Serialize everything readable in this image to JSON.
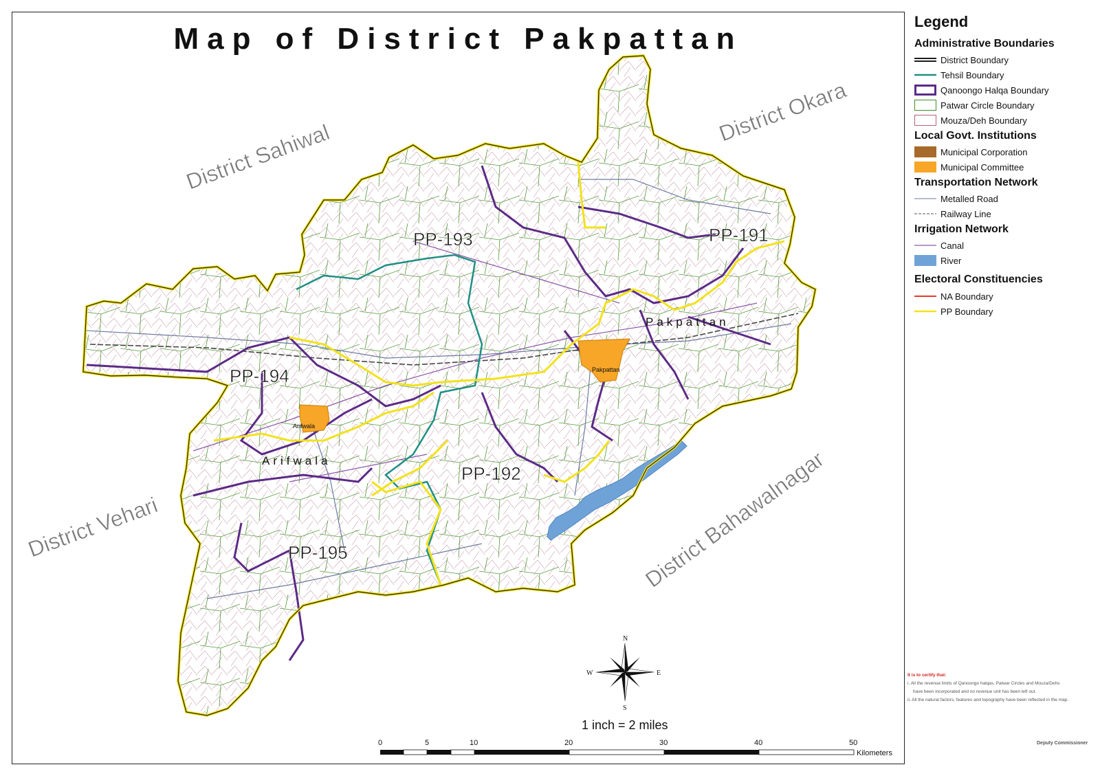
{
  "title": "Map of District Pakpattan",
  "neighbors": [
    {
      "id": "sahiwal",
      "label": "District Sahiwal"
    },
    {
      "id": "okara",
      "label": "District Okara"
    },
    {
      "id": "vehari",
      "label": "District Vehari"
    },
    {
      "id": "bahawalnagar",
      "label": "District Bahawalnagar"
    }
  ],
  "constituencies": [
    "PP-191",
    "PP-192",
    "PP-193",
    "PP-194",
    "PP-195"
  ],
  "towns": {
    "pakpattan_tehsil": "Pakpattan",
    "pakpattan_city": "Pakpattan",
    "arifwala_tehsil": "Arifwala",
    "arifwala_city": "Arifwala"
  },
  "compass": {
    "n": "N",
    "s": "S",
    "e": "E",
    "w": "W"
  },
  "scale_text": "1 inch = 2 miles",
  "scale_bar": {
    "ticks": [
      "0",
      "5",
      "10",
      "20",
      "30",
      "40",
      "50"
    ],
    "unit": "Kilometers"
  },
  "legend": {
    "title": "Legend",
    "sections": {
      "admin": "Administrative Boundaries",
      "lgi": "Local Govt. Institutions",
      "transport": "Transportation Network",
      "irrigation": "Irrigation Network",
      "electoral": "Electoral Constituencies"
    },
    "items": {
      "district": "District Boundary",
      "tehsil": "Tehsil Boundary",
      "qanoongo": "Qanoongo Halqa Boundary",
      "patwar": "Patwar Circle Boundary",
      "mouza": "Mouza/Deh Boundary",
      "mc_corp": "Municipal Corporation",
      "mc_comm": "Municipal Committee",
      "road": "Metalled Road",
      "rail": "Railway Line",
      "canal": "Canal",
      "river": "River",
      "na": "NA Boundary",
      "pp": "PP Boundary"
    },
    "colors": {
      "district": "#1a1a1a",
      "tehsil": "#1f8f84",
      "qanoongo": "#5b2a86",
      "patwar": "#3f8c2a",
      "mouza": "#b06080",
      "mc_corp": "#a66a2a",
      "mc_comm": "#f7a627",
      "road": "#6a7aa0",
      "rail": "#777777",
      "canal": "#8a5aa8",
      "river": "#6fa3d8",
      "na": "#e8372a",
      "pp": "#f2e21a"
    }
  },
  "certificate": {
    "heading": "It is to certify that:",
    "line1": "i.  All the revenue limits of Qanoongo halqas, Patwar Circles and Mouza/Dehs",
    "line1b": "have been incorporated and no revenue unit has been left out.",
    "line2": "ii. All the natural factors, features and topography have been reflected in the map."
  },
  "signatory": "Deputy Commissioner"
}
